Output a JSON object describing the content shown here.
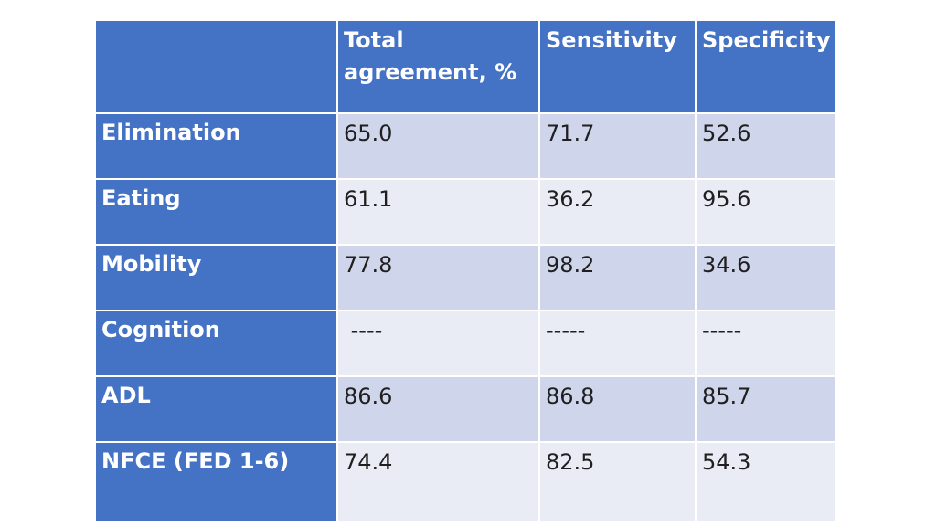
{
  "table": {
    "columns": [
      "",
      "Total agreement, %",
      "Sensitivity",
      "Specificity"
    ],
    "rows": [
      {
        "label": "Elimination",
        "total": "65.0",
        "sensitivity": "71.7",
        "specificity": "52.6"
      },
      {
        "label": "Eating",
        "total": "61.1",
        "sensitivity": "36.2",
        "specificity": "95.6"
      },
      {
        "label": "Mobility",
        "total": "77.8",
        "sensitivity": "98.2",
        "specificity": "34.6"
      },
      {
        "label": "Cognition",
        "total": " ----",
        "sensitivity": "-----",
        "specificity": "-----"
      },
      {
        "label": "ADL",
        "total": "86.6",
        "sensitivity": "86.8",
        "specificity": "85.7"
      },
      {
        "label": "NFCE (FED 1-6)",
        "total": "74.4",
        "sensitivity": "82.5",
        "specificity": "54.3"
      }
    ]
  },
  "colors": {
    "header": "#4472c4",
    "row_odd": "#cfd5ea",
    "row_even": "#e9ebf5"
  }
}
